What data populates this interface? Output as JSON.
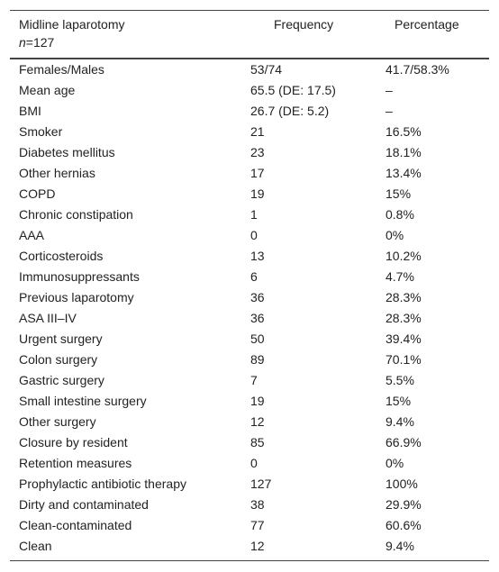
{
  "table": {
    "header": {
      "columns": [
        "Midline laparotomy",
        "Frequency",
        "Percentage"
      ],
      "sample_symbol": "n",
      "sample_value": "=127"
    },
    "rows": [
      [
        "Females/Males",
        "53/74",
        "41.7/58.3%"
      ],
      [
        "Mean age",
        "65.5 (DE: 17.5)",
        "–"
      ],
      [
        "BMI",
        "26.7 (DE: 5.2)",
        "–"
      ],
      [
        "Smoker",
        "21",
        "16.5%"
      ],
      [
        "Diabetes mellitus",
        "23",
        "18.1%"
      ],
      [
        "Other hernias",
        "17",
        "13.4%"
      ],
      [
        "COPD",
        "19",
        "15%"
      ],
      [
        "Chronic constipation",
        "1",
        "0.8%"
      ],
      [
        "AAA",
        "0",
        "0%"
      ],
      [
        "Corticosteroids",
        "13",
        "10.2%"
      ],
      [
        "Immunosuppressants",
        "6",
        "4.7%"
      ],
      [
        "Previous laparotomy",
        "36",
        "28.3%"
      ],
      [
        "ASA III–IV",
        "36",
        "28.3%"
      ],
      [
        "Urgent surgery",
        "50",
        "39.4%"
      ],
      [
        "Colon surgery",
        "89",
        "70.1%"
      ],
      [
        "Gastric surgery",
        "7",
        "5.5%"
      ],
      [
        "Small intestine surgery",
        "19",
        "15%"
      ],
      [
        "Other surgery",
        "12",
        "9.4%"
      ],
      [
        "Closure by resident",
        "85",
        "66.9%"
      ],
      [
        "Retention measures",
        "0",
        "0%"
      ],
      [
        "Prophylactic antibiotic therapy",
        "127",
        "100%"
      ],
      [
        "Dirty and contaminated",
        "38",
        "29.9%"
      ],
      [
        "Clean-contaminated",
        "77",
        "60.6%"
      ],
      [
        "Clean",
        "12",
        "9.4%"
      ]
    ]
  }
}
